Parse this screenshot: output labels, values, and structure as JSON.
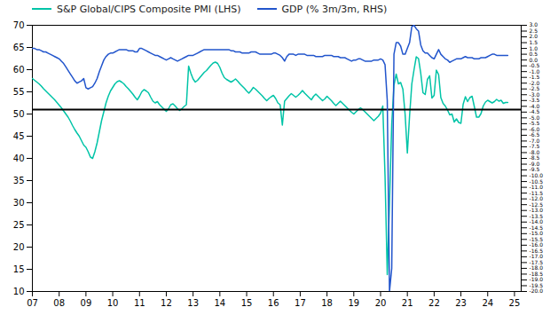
{
  "chart_data": {
    "type": "line",
    "legend": "top",
    "grid": false,
    "x": [
      2007.0,
      2007.083,
      2007.167,
      2007.25,
      2007.333,
      2007.417,
      2007.5,
      2007.583,
      2007.667,
      2007.75,
      2007.833,
      2007.917,
      2008.0,
      2008.083,
      2008.167,
      2008.25,
      2008.333,
      2008.417,
      2008.5,
      2008.583,
      2008.667,
      2008.75,
      2008.833,
      2008.917,
      2009.0,
      2009.083,
      2009.167,
      2009.25,
      2009.333,
      2009.417,
      2009.5,
      2009.583,
      2009.667,
      2009.75,
      2009.833,
      2009.917,
      2010.0,
      2010.083,
      2010.167,
      2010.25,
      2010.333,
      2010.417,
      2010.5,
      2010.583,
      2010.667,
      2010.75,
      2010.833,
      2010.917,
      2011.0,
      2011.083,
      2011.167,
      2011.25,
      2011.333,
      2011.417,
      2011.5,
      2011.583,
      2011.667,
      2011.75,
      2011.833,
      2011.917,
      2012.0,
      2012.083,
      2012.167,
      2012.25,
      2012.333,
      2012.417,
      2012.5,
      2012.583,
      2012.667,
      2012.75,
      2012.833,
      2012.917,
      2013.0,
      2013.083,
      2013.167,
      2013.25,
      2013.333,
      2013.417,
      2013.5,
      2013.583,
      2013.667,
      2013.75,
      2013.833,
      2013.917,
      2014.0,
      2014.083,
      2014.167,
      2014.25,
      2014.333,
      2014.417,
      2014.5,
      2014.583,
      2014.667,
      2014.75,
      2014.833,
      2014.917,
      2015.0,
      2015.083,
      2015.167,
      2015.25,
      2015.333,
      2015.417,
      2015.5,
      2015.583,
      2015.667,
      2015.75,
      2015.833,
      2015.917,
      2016.0,
      2016.083,
      2016.167,
      2016.25,
      2016.333,
      2016.417,
      2016.5,
      2016.583,
      2016.667,
      2016.75,
      2016.833,
      2016.917,
      2017.0,
      2017.083,
      2017.167,
      2017.25,
      2017.333,
      2017.417,
      2017.5,
      2017.583,
      2017.667,
      2017.75,
      2017.833,
      2017.917,
      2018.0,
      2018.083,
      2018.167,
      2018.25,
      2018.333,
      2018.417,
      2018.5,
      2018.583,
      2018.667,
      2018.75,
      2018.833,
      2018.917,
      2019.0,
      2019.083,
      2019.167,
      2019.25,
      2019.333,
      2019.417,
      2019.5,
      2019.583,
      2019.667,
      2019.75,
      2019.833,
      2019.917,
      2020.0,
      2020.083,
      2020.167,
      2020.25,
      2020.333,
      2020.417,
      2020.5,
      2020.583,
      2020.667,
      2020.75,
      2020.833,
      2020.917,
      2021.0,
      2021.083,
      2021.167,
      2021.25,
      2021.333,
      2021.417,
      2021.5,
      2021.583,
      2021.667,
      2021.75,
      2021.833,
      2021.917,
      2022.0,
      2022.083,
      2022.167,
      2022.25,
      2022.333,
      2022.417,
      2022.5,
      2022.583,
      2022.667,
      2022.75,
      2022.833,
      2022.917,
      2023.0,
      2023.083,
      2023.167,
      2023.25,
      2023.333,
      2023.417,
      2023.5,
      2023.583,
      2023.667,
      2023.75,
      2023.833,
      2023.917,
      2024.0,
      2024.083,
      2024.167,
      2024.25,
      2024.333,
      2024.417,
      2024.5,
      2024.583,
      2024.667,
      2024.75
    ],
    "xlim": [
      2007.0,
      2025.25
    ],
    "xticks": [
      {
        "value": 2007,
        "label": "07"
      },
      {
        "value": 2008,
        "label": "08"
      },
      {
        "value": 2009,
        "label": "09"
      },
      {
        "value": 2010,
        "label": "10"
      },
      {
        "value": 2011,
        "label": "11"
      },
      {
        "value": 2012,
        "label": "12"
      },
      {
        "value": 2013,
        "label": "13"
      },
      {
        "value": 2014,
        "label": "14"
      },
      {
        "value": 2015,
        "label": "15"
      },
      {
        "value": 2016,
        "label": "16"
      },
      {
        "value": 2017,
        "label": "17"
      },
      {
        "value": 2018,
        "label": "18"
      },
      {
        "value": 2019,
        "label": "19"
      },
      {
        "value": 2020,
        "label": "20"
      },
      {
        "value": 2021,
        "label": "21"
      },
      {
        "value": 2022,
        "label": "22"
      },
      {
        "value": 2023,
        "label": "23"
      },
      {
        "value": 2024,
        "label": "24"
      },
      {
        "value": 2025,
        "label": "25"
      }
    ],
    "ylim": [
      10,
      70
    ],
    "yticks": [
      10,
      15,
      20,
      25,
      30,
      35,
      40,
      45,
      50,
      55,
      60,
      65,
      70
    ],
    "y2lim": [
      -20.0,
      3.0
    ],
    "y2ticks": [
      {
        "value": -20,
        "label": "-20.0"
      },
      -19.5,
      {
        "value": -19,
        "label": "-19.0"
      },
      -18.5,
      {
        "value": -18,
        "label": "-18.0"
      },
      -17.5,
      {
        "value": -17,
        "label": "-17.0"
      },
      -16.5,
      {
        "value": -16,
        "label": "-16.0"
      },
      -15.5,
      {
        "value": -15,
        "label": "-15.0"
      },
      -14.5,
      {
        "value": -14,
        "label": "-14.0"
      },
      -13.5,
      {
        "value": -13,
        "label": "-13.0"
      },
      -12.5,
      {
        "value": -12,
        "label": "-12.0"
      },
      -11.5,
      {
        "value": -11,
        "label": "-11.0"
      },
      -10.5,
      {
        "value": -10,
        "label": "-10.0"
      },
      -9.5,
      {
        "value": -9,
        "label": "-9.0"
      },
      -8.5,
      {
        "value": -8,
        "label": "-8.0"
      },
      -7.5,
      {
        "value": -7,
        "label": "-7.0"
      },
      -6.5,
      {
        "value": -6,
        "label": "-6.0"
      },
      -5.5,
      {
        "value": -5,
        "label": "-5.0"
      },
      -4.5,
      {
        "value": -4,
        "label": "-4.0"
      },
      -3.5,
      {
        "value": -3,
        "label": "-3.0"
      },
      -2.5,
      {
        "value": -2,
        "label": "-2.0"
      },
      -1.5,
      {
        "value": -1,
        "label": "-1.0"
      },
      -0.5,
      {
        "value": 0,
        "label": "0.0"
      },
      0.5,
      {
        "value": 1,
        "label": "1.0"
      },
      1.5,
      {
        "value": 2,
        "label": "2.0"
      },
      2.5,
      {
        "value": 3,
        "label": "3.0"
      }
    ],
    "hline_y": 51.0,
    "series": [
      {
        "name": "S&P Global/CIPS Composite PMI (LHS)",
        "color": "#00C4A7",
        "values": [
          58.0,
          57.6,
          57.2,
          56.8,
          56.3,
          55.7,
          55.2,
          54.7,
          54.2,
          53.7,
          53.2,
          52.6,
          52.0,
          51.4,
          50.7,
          50.0,
          49.3,
          48.4,
          47.4,
          46.5,
          45.7,
          45.0,
          44.0,
          43.0,
          42.5,
          41.5,
          40.3,
          40.0,
          41.5,
          43.5,
          46.0,
          48.5,
          50.5,
          52.5,
          54.0,
          55.2,
          56.0,
          56.8,
          57.3,
          57.5,
          57.2,
          56.8,
          56.2,
          55.7,
          55.1,
          54.5,
          53.8,
          53.2,
          54.0,
          55.0,
          55.5,
          55.2,
          54.8,
          53.8,
          52.9,
          52.5,
          52.8,
          52.1,
          51.6,
          51.1,
          50.6,
          51.2,
          52.1,
          52.3,
          51.8,
          51.2,
          50.8,
          51.2,
          51.7,
          52.1,
          60.8,
          59.2,
          57.9,
          57.2,
          57.6,
          58.2,
          58.8,
          59.4,
          59.8,
          60.4,
          61.0,
          61.5,
          61.7,
          61.4,
          60.5,
          59.2,
          58.2,
          57.8,
          57.5,
          57.2,
          57.5,
          57.9,
          57.4,
          56.8,
          56.3,
          55.8,
          55.2,
          54.7,
          55.3,
          56.0,
          55.6,
          55.1,
          54.6,
          54.1,
          53.5,
          53.0,
          53.5,
          53.9,
          54.2,
          53.5,
          52.5,
          52.1,
          47.5,
          52.9,
          53.5,
          54.1,
          54.6,
          54.2,
          53.8,
          54.2,
          54.7,
          55.3,
          54.7,
          54.2,
          53.7,
          53.2,
          54.0,
          54.5,
          54.0,
          53.5,
          53.0,
          53.4,
          54.0,
          53.5,
          53.0,
          52.4,
          51.9,
          52.4,
          52.9,
          52.4,
          51.9,
          51.4,
          50.9,
          50.4,
          50.0,
          50.5,
          51.0,
          51.4,
          51.0,
          50.5,
          50.0,
          49.5,
          49.0,
          48.5,
          49.0,
          49.5,
          50.2,
          51.8,
          36.0,
          13.8,
          30.0,
          47.7,
          56.5,
          59.0,
          56.8,
          57.1,
          55.6,
          49.9,
          41.2,
          49.6,
          56.8,
          60.0,
          62.9,
          62.5,
          59.2,
          54.8,
          54.4,
          57.8,
          58.6,
          53.6,
          54.2,
          59.9,
          58.9,
          53.7,
          52.4,
          51.8,
          50.9,
          49.8,
          50.0,
          48.2,
          48.9,
          48.1,
          47.9,
          52.2,
          53.9,
          52.8,
          53.7,
          54.0,
          51.7,
          49.3,
          49.3,
          50.1,
          51.8,
          52.7,
          53.1,
          52.8,
          52.5,
          52.8,
          53.3,
          52.9,
          53.1,
          52.4,
          52.6,
          52.6
        ]
      },
      {
        "name": "GDP (% 3m/3m, RHS)",
        "color": "#2255CC",
        "axis": "y2",
        "values": [
          1.0,
          1.0,
          0.9,
          0.9,
          0.8,
          0.7,
          0.7,
          0.6,
          0.5,
          0.4,
          0.3,
          0.2,
          0.1,
          -0.1,
          -0.3,
          -0.6,
          -0.9,
          -1.2,
          -1.5,
          -1.8,
          -2.0,
          -1.9,
          -1.8,
          -1.6,
          -2.4,
          -2.5,
          -2.4,
          -2.3,
          -2.0,
          -1.6,
          -1.0,
          -0.5,
          0.0,
          0.3,
          0.5,
          0.6,
          0.6,
          0.7,
          0.8,
          0.9,
          0.9,
          0.9,
          0.9,
          0.8,
          0.8,
          0.8,
          0.7,
          0.7,
          1.0,
          1.0,
          0.9,
          0.8,
          0.7,
          0.6,
          0.5,
          0.4,
          0.4,
          0.3,
          0.2,
          0.1,
          0.0,
          0.1,
          0.2,
          0.1,
          0.0,
          -0.1,
          0.0,
          0.1,
          0.2,
          0.3,
          0.4,
          0.4,
          0.4,
          0.5,
          0.6,
          0.7,
          0.8,
          0.9,
          0.9,
          0.9,
          0.9,
          0.9,
          0.9,
          0.9,
          0.9,
          0.9,
          0.9,
          0.9,
          0.9,
          0.8,
          0.8,
          0.7,
          0.7,
          0.7,
          0.6,
          0.6,
          0.6,
          0.6,
          0.7,
          0.7,
          0.7,
          0.6,
          0.5,
          0.5,
          0.5,
          0.5,
          0.5,
          0.5,
          0.6,
          0.6,
          0.5,
          0.4,
          0.2,
          -0.1,
          0.3,
          0.5,
          0.5,
          0.5,
          0.4,
          0.5,
          0.5,
          0.5,
          0.5,
          0.4,
          0.4,
          0.4,
          0.4,
          0.3,
          0.3,
          0.3,
          0.3,
          0.4,
          0.4,
          0.4,
          0.4,
          0.3,
          0.3,
          0.3,
          0.2,
          0.2,
          0.2,
          0.1,
          0.0,
          -0.1,
          0.0,
          0.0,
          0.1,
          0.1,
          0.0,
          -0.1,
          -0.1,
          -0.1,
          -0.1,
          0.0,
          0.0,
          0.0,
          0.1,
          0.0,
          -0.4,
          -3.5,
          -20.0,
          -18.0,
          0.5,
          1.5,
          1.5,
          1.2,
          0.5,
          0.5,
          1.0,
          1.5,
          2.9,
          3.0,
          2.7,
          2.5,
          1.3,
          0.8,
          0.6,
          0.6,
          0.4,
          0.2,
          0.1,
          0.5,
          0.9,
          0.5,
          0.3,
          0.1,
          0.0,
          -0.2,
          -0.1,
          0.0,
          0.1,
          0.1,
          0.1,
          0.2,
          0.3,
          0.2,
          0.2,
          0.2,
          0.1,
          0.1,
          0.1,
          0.2,
          0.2,
          0.2,
          0.3,
          0.4,
          0.5,
          0.5,
          0.4,
          0.4,
          0.4,
          0.4,
          0.4,
          0.4
        ]
      }
    ]
  }
}
